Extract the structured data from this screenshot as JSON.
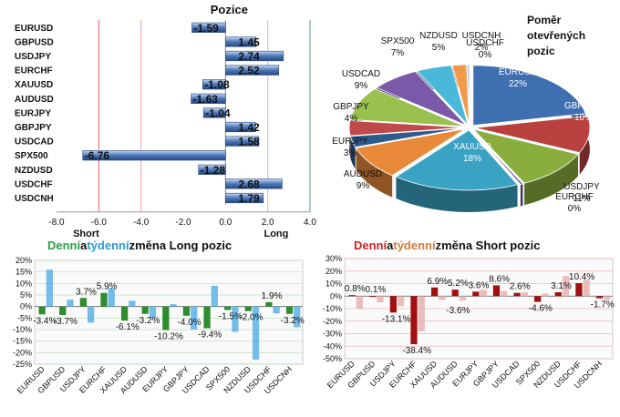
{
  "chart_data": [
    {
      "type": "bar",
      "orientation": "horizontal",
      "title": "Pozice",
      "categories": [
        "EURUSD",
        "GBPUSD",
        "USDJPY",
        "EURCHF",
        "XAUUSD",
        "AUDUSD",
        "EURJPY",
        "GBPJPY",
        "USDCAD",
        "SPX500",
        "NZDUSD",
        "USDCHF",
        "USDCNH"
      ],
      "values": [
        -1.59,
        1.45,
        2.74,
        2.52,
        -1.08,
        -1.63,
        -1.04,
        1.42,
        1.58,
        -6.76,
        -1.28,
        2.68,
        1.79
      ],
      "value_labels": [
        "-1.59",
        "1.45",
        "2.74",
        "2.52",
        "-1.08",
        "-1.63",
        "-1.04",
        "1.42",
        "1.58",
        "-6.76",
        "-1.28",
        "2.68",
        "1.79"
      ],
      "xlim": [
        -8,
        4
      ],
      "xticks": [
        "-8.0",
        "-6.0",
        "-4.0",
        "-2.0",
        "0.0",
        "2.0",
        "4.0"
      ],
      "short_label": "Short",
      "long_label": "Long",
      "colors": {
        "bar": "#4a76b8",
        "short_line": "#e06060",
        "long_line": "#5aa05a"
      }
    },
    {
      "type": "pie",
      "title": "Poměr otevřených pozic",
      "title_lines": [
        "Poměr",
        "otevřených",
        "pozic"
      ],
      "slices": [
        {
          "name": "EURUSD",
          "value": 22,
          "label": "22%",
          "color": "#3e6fb0"
        },
        {
          "name": "GBPUSD",
          "value": 10,
          "label": "10%",
          "color": "#b8413e"
        },
        {
          "name": "USDJPY",
          "value": 11,
          "label": "11%",
          "color": "#8aae3e"
        },
        {
          "name": "EURCHF",
          "value": 0,
          "label": "0%",
          "color": "#6b4c9a"
        },
        {
          "name": "XAUUSD",
          "value": 18,
          "label": "18%",
          "color": "#3aa3c4"
        },
        {
          "name": "AUDUSD",
          "value": 9,
          "label": "9%",
          "color": "#e8893a"
        },
        {
          "name": "EURJPY",
          "value": 3,
          "label": "3%",
          "color": "#2e5a8c"
        },
        {
          "name": "GBPJPY",
          "value": 4,
          "label": "4%",
          "color": "#c04a4a"
        },
        {
          "name": "USDCAD",
          "value": 9,
          "label": "9%",
          "color": "#9ac050"
        },
        {
          "name": "SPX500",
          "value": 7,
          "label": "7%",
          "color": "#7a5aa8"
        },
        {
          "name": "NZDUSD",
          "value": 5,
          "label": "5%",
          "color": "#4ab8d8"
        },
        {
          "name": "USDCNH",
          "value": 2,
          "label": "2%",
          "color": "#f09a4a"
        },
        {
          "name": "USDCHF",
          "value": 0,
          "label": "0%",
          "color": "#aac8e8"
        }
      ]
    },
    {
      "type": "bar",
      "title_parts": [
        "Denní",
        " a ",
        "týdenní",
        " změna Long pozic"
      ],
      "title_colors": [
        "#2aa040",
        "#111111",
        "#2a9ad8",
        "#111111"
      ],
      "categories": [
        "EURUSD",
        "GBPUSD",
        "USDJPY",
        "EURCHF",
        "XAUUSD",
        "AUDUSD",
        "EURJPY",
        "GBPJPY",
        "USDCAD",
        "SPX500",
        "NZDUSD",
        "USDCHF",
        "USDCNH"
      ],
      "series": [
        {
          "name": "Denní",
          "values": [
            -3.4,
            -3.7,
            3.7,
            5.9,
            -6.1,
            -3.2,
            -10.2,
            -4.0,
            -9.4,
            -1.5,
            -2.0,
            1.9,
            -3.2
          ],
          "color": "#2e8b2e"
        },
        {
          "name": "Týdenní",
          "values": [
            16,
            3,
            -7,
            8,
            2.5,
            -5,
            1,
            -10,
            9,
            -11,
            -23,
            -3,
            -9
          ],
          "color": "#5ab0e8"
        }
      ],
      "data_labels": [
        {
          "cat": 0,
          "text": "-3.4%"
        },
        {
          "cat": 1,
          "text": "-3.7%"
        },
        {
          "cat": 2,
          "text": "3.7%"
        },
        {
          "cat": 3,
          "text": "5.9%"
        },
        {
          "cat": 4,
          "text": "-6.1%"
        },
        {
          "cat": 5,
          "text": "-3.2%"
        },
        {
          "cat": 6,
          "text": "-10.2%"
        },
        {
          "cat": 7,
          "text": "-4.0%"
        },
        {
          "cat": 8,
          "text": "-9.4%"
        },
        {
          "cat": 9,
          "text": "-1.5%"
        },
        {
          "cat": 10,
          "text": "-2.0%"
        },
        {
          "cat": 11,
          "text": "1.9%"
        },
        {
          "cat": 12,
          "text": "-3.2%"
        }
      ],
      "ylim": [
        -25,
        20
      ],
      "yticks": [
        "20%",
        "15%",
        "10%",
        "5%",
        "0%",
        "-5%",
        "-10%",
        "-15%",
        "-20%",
        "-25%"
      ],
      "grid": true
    },
    {
      "type": "bar",
      "title_parts": [
        "Denní",
        " a ",
        "týdenní",
        " změna Short pozic"
      ],
      "title_colors": [
        "#d02020",
        "#111111",
        "#d87a3a",
        "#111111"
      ],
      "categories": [
        "EURUSD",
        "GBPUSD",
        "USDJPY",
        "EURCHF",
        "XAUUSD",
        "AUDUSD",
        "EURJPY",
        "GBPJPY",
        "USDCAD",
        "SPX500",
        "NZDUSD",
        "USDCHF",
        "USDCNH"
      ],
      "series": [
        {
          "name": "Denní",
          "values": [
            0.8,
            0.1,
            -13.1,
            -38.4,
            6.9,
            5.2,
            3.6,
            8.6,
            2.6,
            -4.6,
            3.1,
            10.4,
            -1.7
          ],
          "color": "#a01010"
        },
        {
          "name": "Týdenní",
          "values": [
            -10,
            -5,
            -8,
            -28,
            -3,
            -3.6,
            5,
            4,
            3,
            2,
            16,
            13,
            -3
          ],
          "color": "#e8b0b0"
        }
      ],
      "data_labels": [
        {
          "cat": 0,
          "text": "0.8%"
        },
        {
          "cat": 1,
          "text": "0.1%"
        },
        {
          "cat": 2,
          "text": "-13.1%"
        },
        {
          "cat": 3,
          "text": "-38.4%"
        },
        {
          "cat": 4,
          "text": "6.9%"
        },
        {
          "cat": 5,
          "text": "5.2%"
        },
        {
          "cat": 5,
          "text": "-3.6%"
        },
        {
          "cat": 6,
          "text": "3.6%"
        },
        {
          "cat": 7,
          "text": "8.6%"
        },
        {
          "cat": 8,
          "text": "2.6%"
        },
        {
          "cat": 9,
          "text": "-4.6%"
        },
        {
          "cat": 10,
          "text": "3.1%"
        },
        {
          "cat": 11,
          "text": "10.4%"
        },
        {
          "cat": 12,
          "text": "-1.7%"
        }
      ],
      "ylim": [
        -50,
        30
      ],
      "yticks": [
        "30%",
        "20%",
        "10%",
        "0%",
        "-10%",
        "-20%",
        "-30%",
        "-40%",
        "-50%"
      ],
      "grid": true
    }
  ]
}
